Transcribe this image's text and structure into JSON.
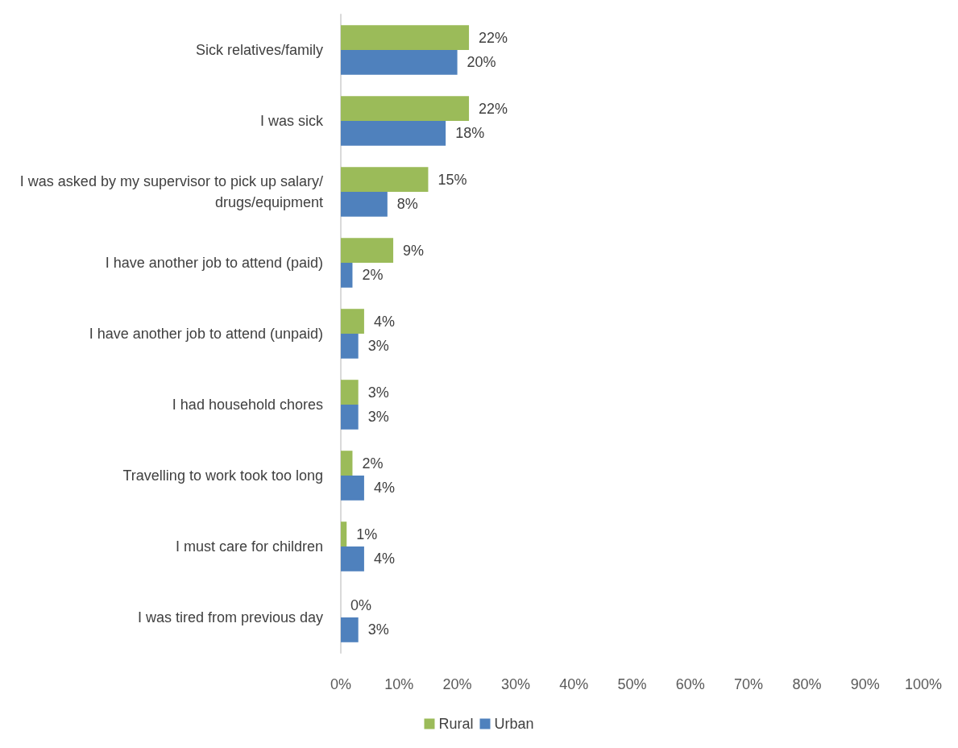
{
  "chart_data": {
    "type": "bar",
    "orientation": "horizontal",
    "categories": [
      "Sick relatives/family",
      "I was sick",
      "I was asked by my supervisor to pick up salary/drugs/equipment",
      "I have another job to attend (paid)",
      "I have another job to attend (unpaid)",
      "I had household chores",
      "Travelling to work took too long",
      "I must care for children",
      "I was tired from previous day"
    ],
    "series": [
      {
        "name": "Rural",
        "color": "#9bbb59",
        "values": [
          22,
          22,
          15,
          9,
          4,
          3,
          2,
          1,
          0
        ],
        "value_labels": [
          "22%",
          "22%",
          "15%",
          "9%",
          "4%",
          "3%",
          "2%",
          "1%",
          "0%"
        ]
      },
      {
        "name": "Urban",
        "color": "#4f81bd",
        "values": [
          20,
          18,
          8,
          2,
          3,
          3,
          4,
          4,
          3
        ],
        "value_labels": [
          "20%",
          "18%",
          "8%",
          "2%",
          "3%",
          "3%",
          "4%",
          "4%",
          "3%"
        ]
      }
    ],
    "xlim": [
      0,
      100
    ],
    "xticks": [
      {
        "value": 0,
        "label": "0%"
      },
      {
        "value": 10,
        "label": "10%"
      },
      {
        "value": 20,
        "label": "20%"
      },
      {
        "value": 30,
        "label": "30%"
      },
      {
        "value": 40,
        "label": "40%"
      },
      {
        "value": 50,
        "label": "50%"
      },
      {
        "value": 60,
        "label": "60%"
      },
      {
        "value": 70,
        "label": "70%"
      },
      {
        "value": 80,
        "label": "80%"
      },
      {
        "value": 90,
        "label": "90%"
      },
      {
        "value": 100,
        "label": "100%"
      }
    ],
    "grid": false,
    "legend": "bottom"
  }
}
